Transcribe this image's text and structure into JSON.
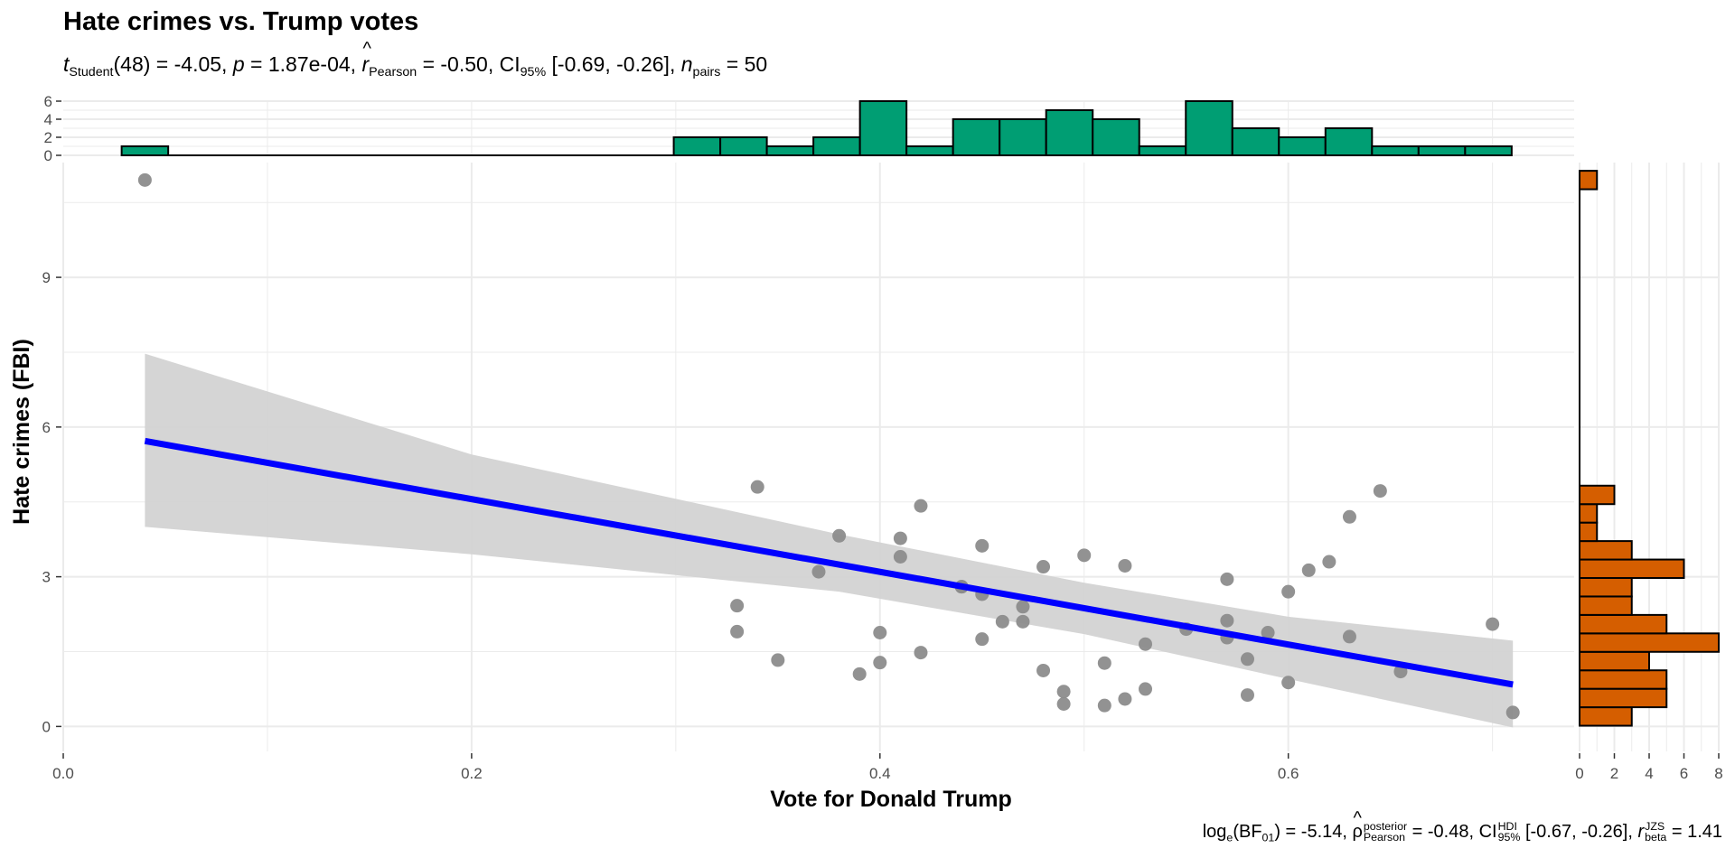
{
  "title": "Hate crimes vs. Trump votes",
  "subtitle": {
    "t": "t",
    "t_sub": "Student",
    "t_df": "(48) = -4.05, ",
    "p": "p",
    "p_val": " = 1.87e-04, ",
    "r": "r",
    "r_sub": "Pearson",
    "r_val": " = -0.50, ",
    "ci": "CI",
    "ci_sub": "95%",
    "ci_val": " [-0.69, -0.26], ",
    "n": "n",
    "n_sub": "pairs",
    "n_val": " = 50"
  },
  "caption": {
    "log": "log",
    "log_sub": "e",
    "bf_open": "(BF",
    "bf_sub": "01",
    "bf_val": ") = -5.14, ",
    "rho": "ρ",
    "rho_sup": "posterior",
    "rho_sub": "Pearson",
    "rho_val": " = -0.48, ",
    "ci": "CI",
    "ci_sup": "HDI",
    "ci_sub": "95%",
    "ci_val": " [-0.67, -0.26], ",
    "rb": "r",
    "rb_sup": "JZS",
    "rb_sub": "beta",
    "rb_val": " = 1.41"
  },
  "colors": {
    "points": "#8c8c8c",
    "line": "#0000ff",
    "ribbon": "#d3d3d3",
    "top_hist": "#009e73",
    "right_hist": "#d55e00",
    "grid": "#ebebeb"
  },
  "chart_data": {
    "type": "scatter",
    "xlabel": "Vote for Donald Trump",
    "ylabel": "Hate crimes (FBI)",
    "xlim": [
      0,
      0.74
    ],
    "ylim": [
      -0.5,
      11.3
    ],
    "x_ticks": [
      "0.0",
      "0.2",
      "0.4",
      "0.6"
    ],
    "y_ticks": [
      "0",
      "3",
      "6",
      "9"
    ],
    "grid": true,
    "points": [
      [
        0.04,
        10.95
      ],
      [
        0.34,
        4.8
      ],
      [
        0.42,
        4.42
      ],
      [
        0.645,
        4.72
      ],
      [
        0.63,
        4.2
      ],
      [
        0.38,
        3.82
      ],
      [
        0.41,
        3.77
      ],
      [
        0.45,
        3.62
      ],
      [
        0.41,
        3.4
      ],
      [
        0.5,
        3.43
      ],
      [
        0.48,
        3.2
      ],
      [
        0.52,
        3.22
      ],
      [
        0.62,
        3.3
      ],
      [
        0.61,
        3.13
      ],
      [
        0.37,
        3.1
      ],
      [
        0.57,
        2.95
      ],
      [
        0.44,
        2.8
      ],
      [
        0.45,
        2.65
      ],
      [
        0.6,
        2.7
      ],
      [
        0.47,
        2.4
      ],
      [
        0.33,
        2.42
      ],
      [
        0.46,
        2.1
      ],
      [
        0.47,
        2.1
      ],
      [
        0.57,
        2.12
      ],
      [
        0.55,
        1.95
      ],
      [
        0.33,
        1.9
      ],
      [
        0.4,
        1.88
      ],
      [
        0.59,
        1.88
      ],
      [
        0.57,
        1.78
      ],
      [
        0.63,
        1.8
      ],
      [
        0.45,
        1.75
      ],
      [
        0.53,
        1.65
      ],
      [
        0.42,
        1.48
      ],
      [
        0.58,
        1.35
      ],
      [
        0.35,
        1.33
      ],
      [
        0.4,
        1.28
      ],
      [
        0.51,
        1.27
      ],
      [
        0.48,
        1.12
      ],
      [
        0.655,
        1.1
      ],
      [
        0.39,
        1.05
      ],
      [
        0.6,
        0.88
      ],
      [
        0.53,
        0.75
      ],
      [
        0.49,
        0.7
      ],
      [
        0.58,
        0.63
      ],
      [
        0.52,
        0.55
      ],
      [
        0.49,
        0.45
      ],
      [
        0.51,
        0.42
      ],
      [
        0.7,
        2.05
      ],
      [
        0.71,
        0.28
      ],
      [
        0.44,
        2.8
      ]
    ],
    "fit_line": {
      "x": [
        0.04,
        0.71
      ],
      "y": [
        5.72,
        0.84
      ]
    },
    "ribbon": {
      "x": [
        0.04,
        0.2,
        0.38,
        0.5,
        0.6,
        0.71
      ],
      "upper": [
        7.47,
        5.45,
        3.85,
        2.88,
        2.2,
        1.72
      ],
      "lower": [
        4.0,
        3.45,
        2.7,
        1.85,
        0.95,
        -0.02
      ]
    },
    "top_histogram": {
      "bin_width": 0.0228,
      "counts": [
        [
          0.04,
          1
        ],
        [
          0.06,
          0
        ],
        [
          0.29,
          0
        ],
        [
          0.3104,
          2
        ],
        [
          0.3332,
          2
        ],
        [
          0.356,
          1
        ],
        [
          0.3788,
          2
        ],
        [
          0.4016,
          6
        ],
        [
          0.4244,
          1
        ],
        [
          0.4472,
          4
        ],
        [
          0.47,
          4
        ],
        [
          0.4928,
          5
        ],
        [
          0.5156,
          4
        ],
        [
          0.5384,
          1
        ],
        [
          0.5612,
          6
        ],
        [
          0.584,
          3
        ],
        [
          0.6068,
          2
        ],
        [
          0.6296,
          3
        ],
        [
          0.6524,
          1
        ],
        [
          0.6752,
          1
        ],
        [
          0.698,
          1
        ]
      ],
      "y_ticks": [
        "0",
        "2",
        "4",
        "6"
      ]
    },
    "right_histogram": {
      "bin_width": 0.37,
      "counts": [
        [
          0.2,
          3
        ],
        [
          0.57,
          5
        ],
        [
          0.94,
          5
        ],
        [
          1.31,
          4
        ],
        [
          1.68,
          8
        ],
        [
          2.05,
          5
        ],
        [
          2.42,
          3
        ],
        [
          2.79,
          3
        ],
        [
          3.16,
          6
        ],
        [
          3.53,
          3
        ],
        [
          3.9,
          1
        ],
        [
          4.27,
          1
        ],
        [
          4.64,
          2
        ],
        [
          10.95,
          1
        ]
      ],
      "x_ticks": [
        "0",
        "2",
        "4",
        "6",
        "8"
      ]
    }
  }
}
